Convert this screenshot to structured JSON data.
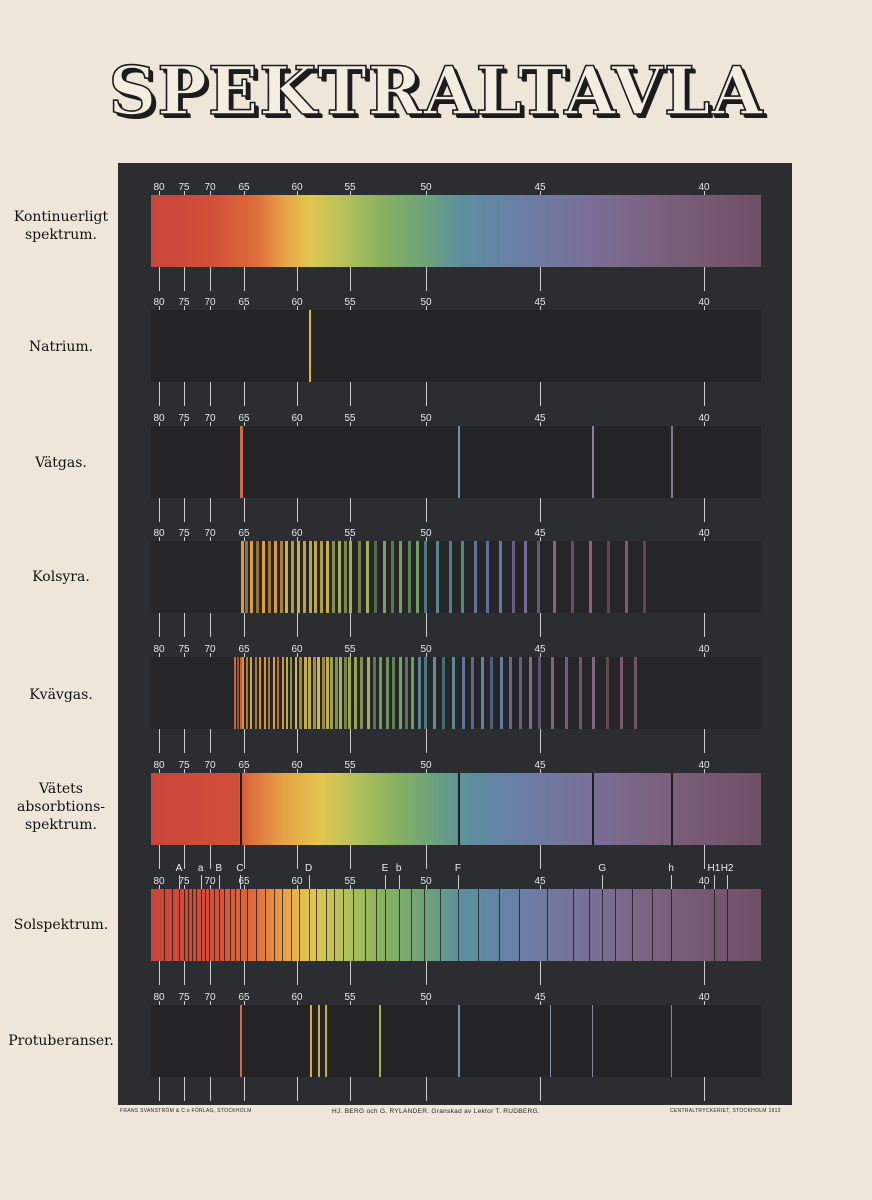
{
  "title": "SPEKTRALTAVLA",
  "wavelength_ticks": [
    "80",
    "75",
    "70",
    "65",
    "60",
    "55",
    "50",
    "45",
    "40"
  ],
  "rows": [
    {
      "id": "kontinuerligt",
      "label": "Kontinuerligt spektrum.",
      "type": "continuous"
    },
    {
      "id": "natrium",
      "label": "Natrium.",
      "type": "emission",
      "lines": [
        {
          "wl": 58.9,
          "color": "#e2b238",
          "w": 2
        }
      ]
    },
    {
      "id": "vatgas",
      "label": "Vätgas.",
      "type": "emission",
      "lines": [
        {
          "wl": 65.6,
          "color": "#d36a4a",
          "w": 3
        },
        {
          "wl": 48.6,
          "color": "#6a8fb8",
          "w": 2
        },
        {
          "wl": 43.4,
          "color": "#8a7fa2",
          "w": 2
        },
        {
          "wl": 41.0,
          "color": "#8a7690",
          "w": 2
        }
      ]
    },
    {
      "id": "kolsyra",
      "label": "Kolsyra.",
      "type": "bands"
    },
    {
      "id": "kvavgas",
      "label": "Kvävgas.",
      "type": "bands-dense"
    },
    {
      "id": "vatets_absorption",
      "label": "Vätets absorbtions-spektrum.",
      "type": "absorption",
      "lines": [
        {
          "wl": 65.6
        },
        {
          "wl": 48.6
        },
        {
          "wl": 43.4
        },
        {
          "wl": 41.0
        }
      ]
    },
    {
      "id": "solspektrum",
      "label": "Solspektrum.",
      "type": "solar"
    },
    {
      "id": "protuberanser",
      "label": "Protuberanser.",
      "type": "emission",
      "lines": [
        {
          "wl": 65.6,
          "color": "#d36a4a",
          "w": 2
        },
        {
          "wl": 58.8,
          "color": "#d8b040",
          "w": 2
        },
        {
          "wl": 58.0,
          "color": "#c9b040",
          "w": 2
        },
        {
          "wl": 57.4,
          "color": "#bbb040",
          "w": 2
        },
        {
          "wl": 53.1,
          "color": "#a8b44a",
          "w": 2
        },
        {
          "wl": 48.6,
          "color": "#6a8fb8",
          "w": 2
        },
        {
          "wl": 44.7,
          "color": "#8a8fb0",
          "w": 1
        },
        {
          "wl": 43.4,
          "color": "#8a84a6",
          "w": 1
        },
        {
          "wl": 41.0,
          "color": "#9080a0",
          "w": 1
        }
      ]
    }
  ],
  "fraunhofer": [
    {
      "label": "A",
      "wl": 76.0
    },
    {
      "label": "a",
      "wl": 71.8
    },
    {
      "label": "B",
      "wl": 68.7
    },
    {
      "label": "C",
      "wl": 65.6
    },
    {
      "label": "D",
      "wl": 58.9
    },
    {
      "label": "E",
      "wl": 52.7
    },
    {
      "label": "b",
      "wl": 51.8
    },
    {
      "label": "F",
      "wl": 48.6
    },
    {
      "label": "G",
      "wl": 43.1
    },
    {
      "label": "h",
      "wl": 41.0
    },
    {
      "label": "H1",
      "wl": 39.7
    },
    {
      "label": "H2",
      "wl": 39.3
    }
  ],
  "footer": {
    "left": "FRANS SVANSTRÖM & C:o FÖRLAG, STOCKHOLM",
    "center": "HJ. BERG och G. RYLANDER.  Granskad av Lektor T. RUDBERG.",
    "right": "CENTRALTRYCKERIET, STOCKHOLM 1913"
  },
  "colors": {
    "board": "#2c2d31",
    "paper": "#efe6da"
  }
}
